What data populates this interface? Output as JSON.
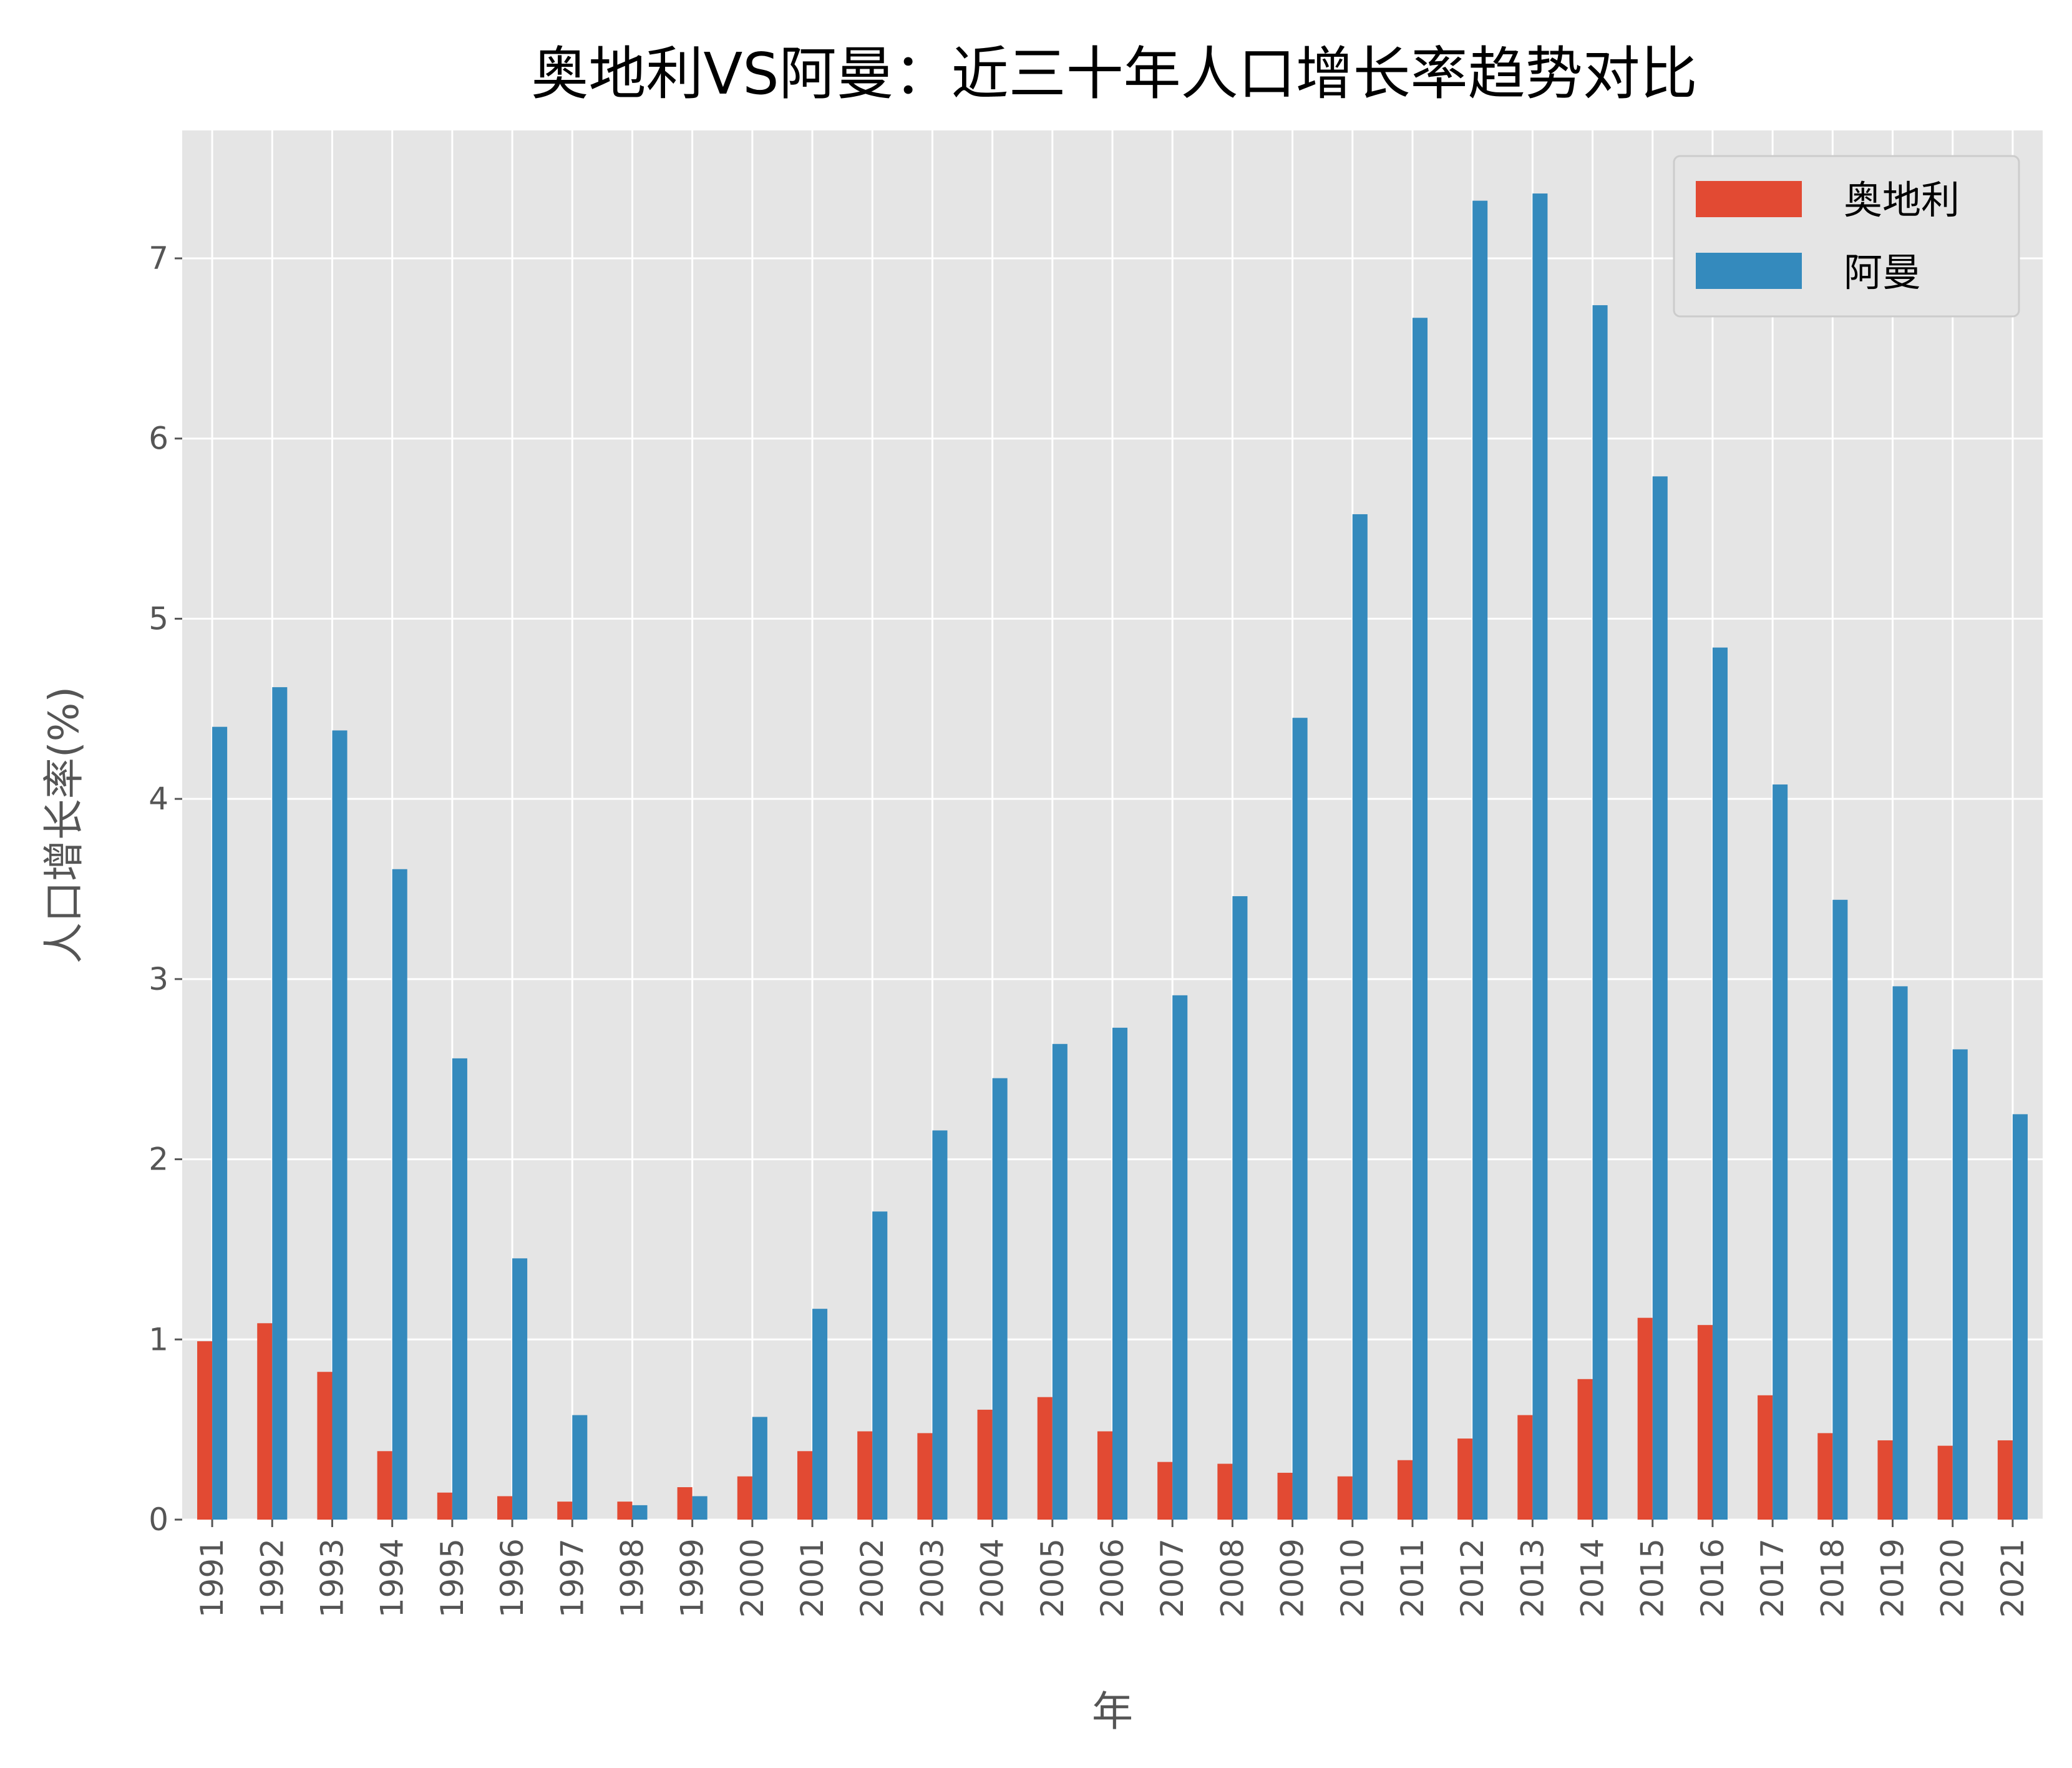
{
  "chart_data": {
    "type": "bar",
    "title": "奥地利VS阿曼：近三十年人口增长率趋势对比",
    "xlabel": "年",
    "ylabel": "人口增长率(%)",
    "ylim": [
      0,
      7.71
    ],
    "yticks": [
      0,
      1,
      2,
      3,
      4,
      5,
      6,
      7
    ],
    "grid": true,
    "legend_position": "top-right",
    "categories": [
      "1991",
      "1992",
      "1993",
      "1994",
      "1995",
      "1996",
      "1997",
      "1998",
      "1999",
      "2000",
      "2001",
      "2002",
      "2003",
      "2004",
      "2005",
      "2006",
      "2007",
      "2008",
      "2009",
      "2010",
      "2011",
      "2012",
      "2013",
      "2014",
      "2015",
      "2016",
      "2017",
      "2018",
      "2019",
      "2020",
      "2021"
    ],
    "series": [
      {
        "name": "奥地利",
        "color": "#E24A33",
        "values": [
          0.99,
          1.09,
          0.82,
          0.38,
          0.15,
          0.13,
          0.1,
          0.1,
          0.18,
          0.24,
          0.38,
          0.49,
          0.48,
          0.61,
          0.68,
          0.49,
          0.32,
          0.31,
          0.26,
          0.24,
          0.33,
          0.45,
          0.58,
          0.78,
          1.12,
          1.08,
          0.69,
          0.48,
          0.44,
          0.41,
          0.44
        ]
      },
      {
        "name": "阿曼",
        "color": "#348ABD",
        "values": [
          4.4,
          4.62,
          4.38,
          3.61,
          2.56,
          1.45,
          0.58,
          0.08,
          0.13,
          0.57,
          1.17,
          1.71,
          2.16,
          2.45,
          2.64,
          2.73,
          2.91,
          3.46,
          4.45,
          5.58,
          6.67,
          7.32,
          7.36,
          6.74,
          5.79,
          4.84,
          4.08,
          3.44,
          2.96,
          2.61,
          2.25
        ]
      }
    ]
  }
}
